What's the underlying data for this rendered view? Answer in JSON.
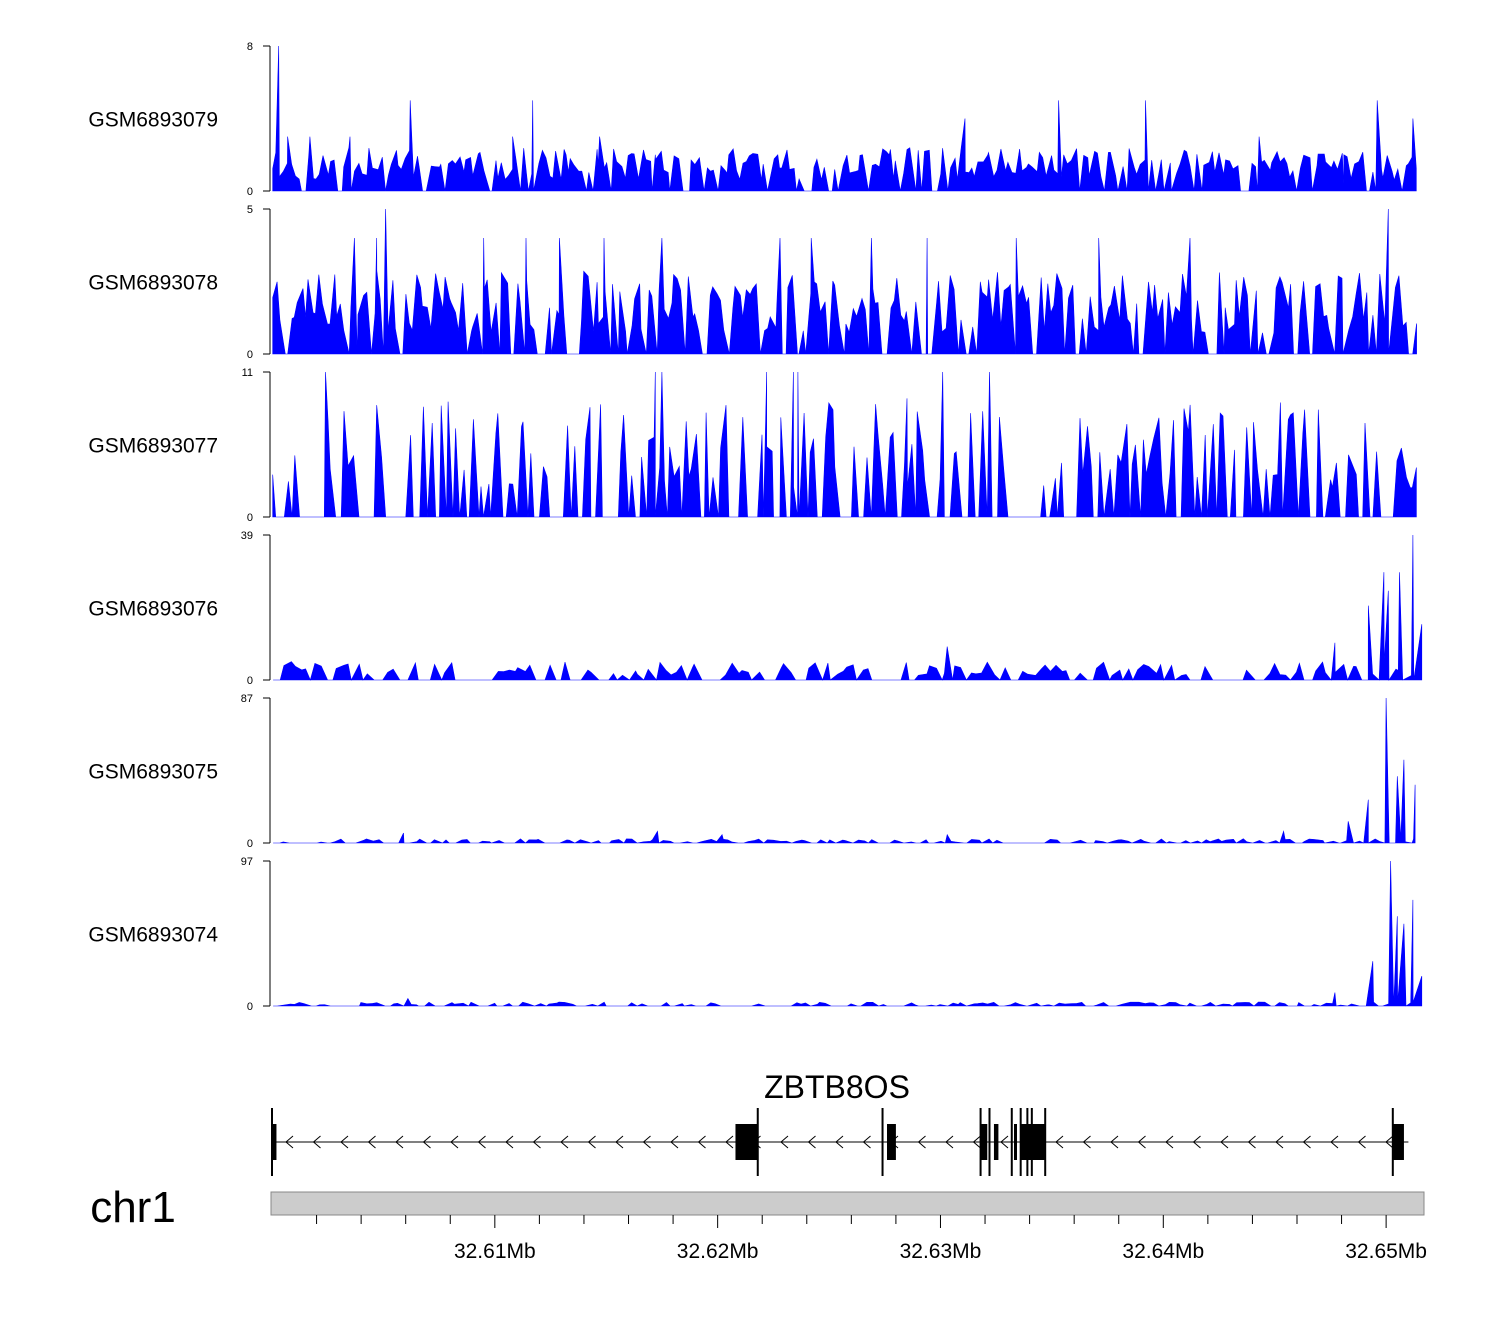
{
  "chart_data": {
    "type": "area",
    "region": {
      "chromosome": "chr1",
      "xlim_mb": [
        32.6,
        32.6517
      ]
    },
    "xaxis": {
      "major_ticks_mb": [
        32.61,
        32.62,
        32.63,
        32.64,
        32.65
      ],
      "major_tick_labels": [
        "32.61Mb",
        "32.62Mb",
        "32.63Mb",
        "32.64Mb",
        "32.65Mb"
      ],
      "minor_ticks_mb": [
        32.602,
        32.604,
        32.606,
        32.608,
        32.612,
        32.614,
        32.616,
        32.618,
        32.622,
        32.624,
        32.626,
        32.628,
        32.632,
        32.634,
        32.636,
        32.638,
        32.642,
        32.644,
        32.646,
        32.648
      ]
    },
    "color": "#0000ff",
    "series": [
      {
        "name": "GSM6893079",
        "ymax": 8,
        "ymin_label": "0",
        "peaks": [
          [
            32.6003,
            8
          ],
          [
            32.6007,
            3
          ],
          [
            32.6017,
            3
          ],
          [
            32.6035,
            3
          ],
          [
            32.6062,
            5
          ],
          [
            32.6108,
            3
          ],
          [
            32.6117,
            5
          ],
          [
            32.6132,
            2
          ],
          [
            32.6147,
            3
          ],
          [
            32.6172,
            2
          ],
          [
            32.6205,
            2
          ],
          [
            32.6227,
            2
          ],
          [
            32.6265,
            2
          ],
          [
            32.6277,
            2
          ],
          [
            32.6311,
            4
          ],
          [
            32.6353,
            5
          ],
          [
            32.6392,
            5
          ],
          [
            32.6443,
            3
          ],
          [
            32.6481,
            2
          ],
          [
            32.6496,
            5
          ],
          [
            32.6512,
            4
          ]
        ],
        "baseline": 1.5,
        "seed": 11
      },
      {
        "name": "GSM6893078",
        "ymax": 5,
        "ymin_label": "0",
        "peaks": [
          [
            32.6051,
            5
          ],
          [
            32.6037,
            4
          ],
          [
            32.6047,
            4
          ],
          [
            32.6095,
            4
          ],
          [
            32.6114,
            4
          ],
          [
            32.6129,
            4
          ],
          [
            32.6149,
            4
          ],
          [
            32.6175,
            4
          ],
          [
            32.6228,
            4
          ],
          [
            32.6242,
            4
          ],
          [
            32.6269,
            4
          ],
          [
            32.6294,
            4
          ],
          [
            32.6334,
            4
          ],
          [
            32.6371,
            4
          ],
          [
            32.6412,
            4
          ],
          [
            32.6501,
            5
          ]
        ],
        "baseline": 1.8,
        "seed": 23
      },
      {
        "name": "GSM6893077",
        "ymax": 11,
        "ymin_label": "0",
        "peaks": [
          [
            32.6024,
            11
          ],
          [
            32.6172,
            11
          ],
          [
            32.6175,
            11
          ],
          [
            32.6222,
            11
          ],
          [
            32.6234,
            11
          ],
          [
            32.6236,
            11
          ],
          [
            32.6301,
            11
          ],
          [
            32.6322,
            11
          ],
          [
            32.6285,
            9
          ]
        ],
        "baseline": 5.5,
        "seed": 37
      },
      {
        "name": "GSM6893076",
        "ymax": 39,
        "ymin_label": "0",
        "peaks": [
          [
            32.6303,
            9
          ],
          [
            32.6477,
            10
          ],
          [
            32.6492,
            20
          ],
          [
            32.6506,
            29
          ],
          [
            32.6512,
            39
          ],
          [
            32.6516,
            15
          ],
          [
            32.6501,
            24
          ],
          [
            32.6499,
            29
          ]
        ],
        "baseline": 4,
        "seed": 41
      },
      {
        "name": "GSM6893075",
        "ymax": 87,
        "ymin_label": "0",
        "peaks": [
          [
            32.6059,
            6
          ],
          [
            32.6173,
            7
          ],
          [
            32.6202,
            5
          ],
          [
            32.6303,
            5
          ],
          [
            32.6454,
            7
          ],
          [
            32.6483,
            13
          ],
          [
            32.6492,
            26
          ],
          [
            32.65,
            87
          ],
          [
            32.6505,
            40
          ],
          [
            32.6508,
            50
          ],
          [
            32.6513,
            35
          ]
        ],
        "baseline": 2,
        "seed": 53
      },
      {
        "name": "GSM6893074",
        "ymax": 97,
        "ymin_label": "0",
        "peaks": [
          [
            32.6061,
            5
          ],
          [
            32.6477,
            9
          ],
          [
            32.6494,
            30
          ],
          [
            32.6502,
            97
          ],
          [
            32.6505,
            60
          ],
          [
            32.6508,
            55
          ],
          [
            32.6512,
            71
          ],
          [
            32.6516,
            20
          ]
        ],
        "baseline": 2,
        "seed": 67
      }
    ],
    "gene": {
      "name": "ZBTB8OS",
      "strand": "-",
      "tx_start_mb": 32.6,
      "tx_end_mb": 32.651,
      "exons_mb": [
        [
          32.6,
          32.6002
        ],
        [
          32.6208,
          32.6218
        ],
        [
          32.6276,
          32.628
        ],
        [
          32.6318,
          32.6321
        ],
        [
          32.6324,
          32.6326
        ],
        [
          32.6333,
          32.6334
        ],
        [
          32.6336,
          32.6347
        ],
        [
          32.6503,
          32.6508
        ]
      ],
      "tick_marks_mb": [
        32.6,
        32.6218,
        32.6274,
        32.6318,
        32.6322,
        32.6332,
        32.6336,
        32.6339,
        32.6341,
        32.6347,
        32.6503
      ]
    }
  }
}
